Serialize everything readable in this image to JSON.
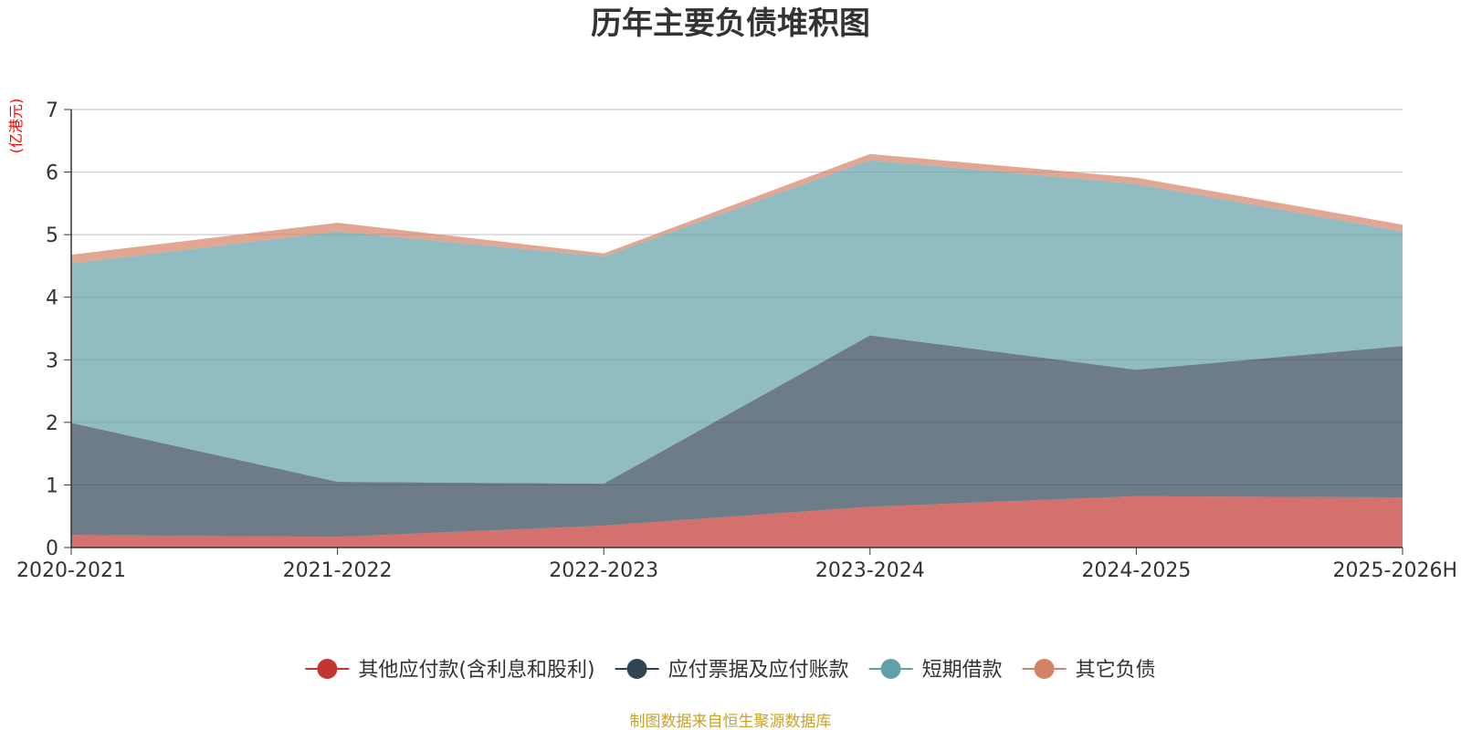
{
  "chart_data": {
    "type": "area",
    "stacked": true,
    "title": "历年主要负债堆积图",
    "unit_label": "(亿港元)",
    "source": "制图数据来自恒生聚源数据库",
    "categories": [
      "2020-2021",
      "2021-2022",
      "2022-2023",
      "2023-2024",
      "2024-2025",
      "2025-2026H"
    ],
    "y_ticks": [
      "0",
      "1",
      "2",
      "3",
      "4",
      "5",
      "6",
      "7"
    ],
    "ylim": [
      0,
      7
    ],
    "grid": true,
    "legend_position": "bottom",
    "series": [
      {
        "name": "其他应付款(含利息和股利)",
        "color": "#c23531",
        "values": [
          0.2,
          0.17,
          0.35,
          0.65,
          0.82,
          0.8
        ]
      },
      {
        "name": "应付票据及应付账款",
        "color": "#2f4554",
        "values": [
          1.79,
          0.88,
          0.67,
          2.74,
          2.02,
          2.42
        ]
      },
      {
        "name": "短期借款",
        "color": "#61a0a8",
        "values": [
          2.55,
          4.0,
          3.63,
          2.8,
          2.97,
          1.83
        ]
      },
      {
        "name": "其它负债",
        "color": "#d48265",
        "values": [
          0.14,
          0.14,
          0.05,
          0.1,
          0.1,
          0.11
        ]
      }
    ],
    "colors": {
      "title": "#333333",
      "unit": "#ff0000",
      "source": "#c9a227",
      "grid": "#cccccc",
      "axis": "#333333"
    }
  }
}
